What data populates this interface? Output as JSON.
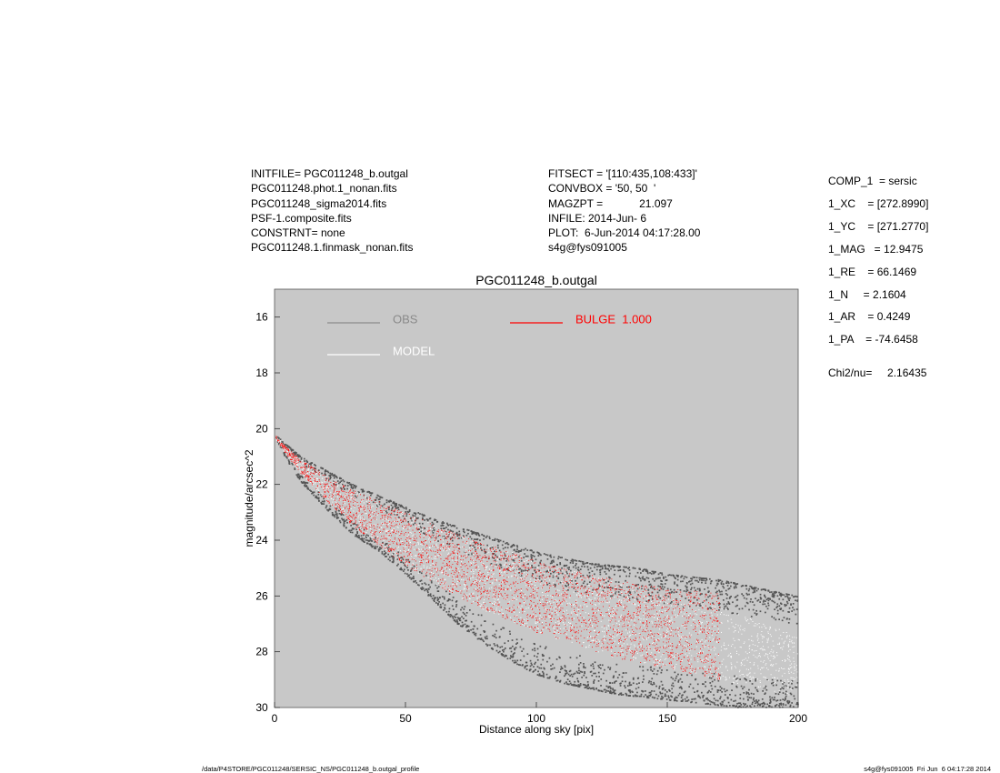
{
  "header": {
    "left_lines": [
      "INITFILE= PGC011248_b.outgal",
      "PGC011248.phot.1_nonan.fits",
      "PGC011248_sigma2014.fits",
      "PSF-1.composite.fits",
      "CONSTRNT= none",
      "PGC011248.1.finmask_nonan.fits"
    ],
    "mid_lines": [
      "FITSECT = '[110:435,108:433]'",
      "CONVBOX = '50, 50  '",
      "MAGZPT =            21.097",
      "INFILE: 2014-Jun- 6",
      "PLOT:  6-Jun-2014 04:17:28.00",
      "s4g@fys091005"
    ]
  },
  "components": {
    "lines": [
      "COMP_1  = sersic",
      "1_XC    = [272.8990]",
      "1_YC    = [271.2770]",
      "1_MAG   = 12.9475",
      "1_RE    = 66.1469",
      "1_N     = 2.1604",
      "1_AR    = 0.4249",
      "1_PA    = -74.6458"
    ],
    "chi2": "Chi2/nu=     2.16435"
  },
  "chart_data": {
    "type": "scatter",
    "title": "PGC011248_b.outgal",
    "xlabel": "Distance along sky [pix]",
    "ylabel": "magnitude/arcsec^2",
    "xlim": [
      0,
      200
    ],
    "ylim": [
      30,
      15
    ],
    "y_inverted": true,
    "xticks": [
      0,
      50,
      100,
      150,
      200
    ],
    "yticks": [
      16,
      18,
      20,
      22,
      24,
      26,
      28,
      30
    ],
    "legend": [
      {
        "label": "OBS",
        "color": "#8a8a8a"
      },
      {
        "label": "MODEL",
        "color": "#ffffff"
      },
      {
        "label": "BULGE  1.000",
        "color": "#ff0000"
      }
    ],
    "series": [
      {
        "name": "OBS",
        "color": "#555555",
        "x": [
          0,
          5,
          10,
          20,
          30,
          40,
          50,
          60,
          70,
          80,
          90,
          100,
          110,
          120,
          130,
          140,
          150,
          160,
          170,
          180,
          190,
          200
        ],
        "y_upper": [
          20.2,
          20.6,
          21.0,
          21.5,
          22.0,
          22.4,
          22.8,
          23.2,
          23.5,
          23.8,
          24.1,
          24.4,
          24.6,
          24.8,
          24.9,
          25.0,
          25.2,
          25.3,
          25.4,
          25.6,
          25.8,
          26.0
        ],
        "y_lower": [
          20.3,
          21.2,
          21.9,
          22.9,
          23.8,
          24.4,
          25.2,
          26.1,
          27.0,
          27.7,
          28.3,
          28.8,
          29.1,
          29.3,
          29.5,
          29.6,
          29.7,
          29.8,
          29.9,
          30.0,
          30.0,
          30.0
        ]
      },
      {
        "name": "MODEL",
        "color": "#ffffff",
        "x": [
          0,
          5,
          10,
          20,
          30,
          40,
          50,
          60,
          70,
          80,
          90,
          100,
          110,
          120,
          130,
          140,
          150,
          160,
          170,
          180,
          190,
          200
        ],
        "y_upper": [
          20.2,
          20.7,
          21.1,
          21.7,
          22.2,
          22.6,
          23.0,
          23.4,
          23.8,
          24.1,
          24.4,
          24.7,
          25.0,
          25.2,
          25.5,
          25.7,
          25.9,
          26.1,
          26.4,
          26.7,
          27.1,
          27.4
        ],
        "y_lower": [
          20.3,
          21.0,
          21.6,
          22.6,
          23.5,
          24.2,
          24.9,
          25.5,
          26.0,
          26.5,
          26.9,
          27.3,
          27.6,
          27.9,
          28.2,
          28.4,
          28.6,
          28.8,
          29.0,
          29.2,
          29.4,
          29.6
        ]
      },
      {
        "name": "BULGE  1.000",
        "color": "#ff0000",
        "x": [
          0,
          5,
          10,
          20,
          30,
          40,
          50,
          60,
          70,
          80,
          90,
          100,
          110,
          120,
          130,
          140,
          150,
          160,
          170
        ],
        "y_upper": [
          20.2,
          20.7,
          21.1,
          21.7,
          22.2,
          22.6,
          23.0,
          23.4,
          23.8,
          24.1,
          24.4,
          24.7,
          25.0,
          25.2,
          25.4,
          25.6,
          25.7,
          25.8,
          25.9
        ],
        "y_lower": [
          20.3,
          21.0,
          21.6,
          22.6,
          23.5,
          24.2,
          24.9,
          25.5,
          26.0,
          26.5,
          26.9,
          27.3,
          27.6,
          27.9,
          28.2,
          28.4,
          28.6,
          28.8,
          29.0
        ]
      }
    ]
  },
  "footer": {
    "left": "/data/P4STORE/PGC011248/SERSIC_NS/PGC011248_b.outgal_profile",
    "right": "s4g@fys091005  Fri Jun  6 04:17:28 2014"
  }
}
